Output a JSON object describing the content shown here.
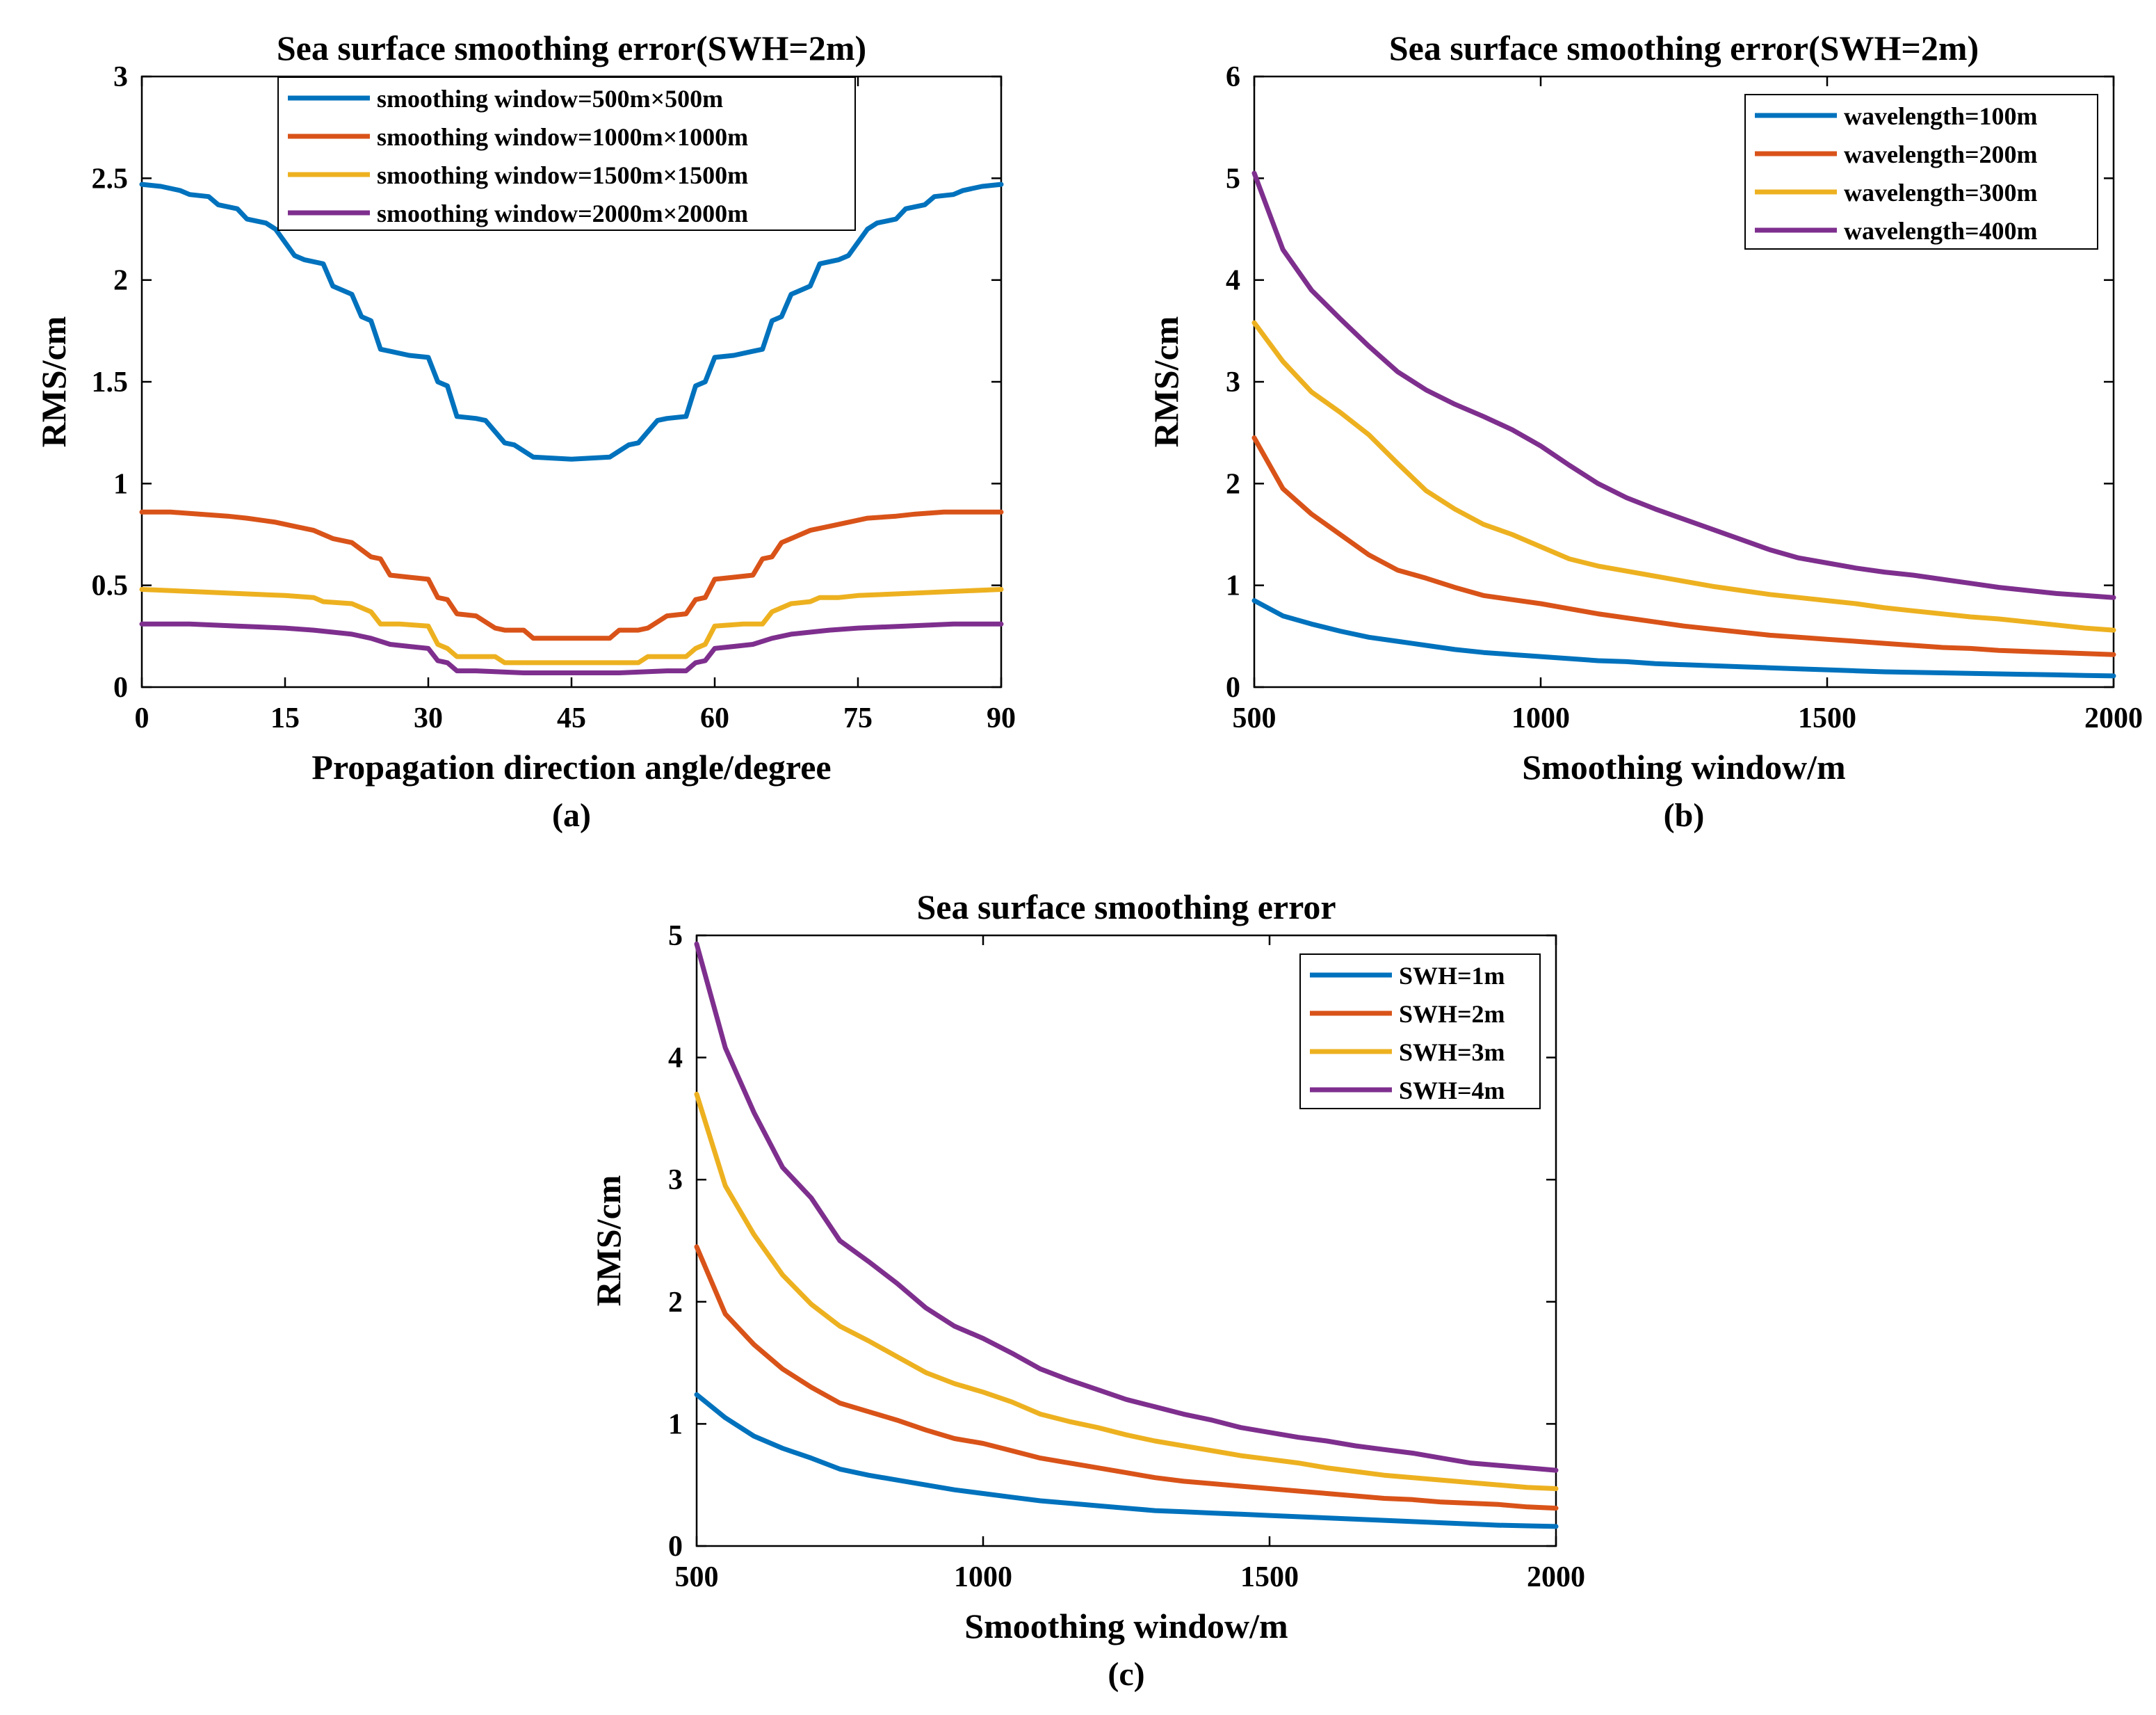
{
  "chart_data": [
    {
      "type": "line",
      "id": "a",
      "title": "Sea surface smoothing error(SWH=2m)",
      "xlabel": "Propagation direction angle/degree",
      "ylabel": "RMS/cm",
      "caption": "(a)",
      "xlim": [
        0,
        90
      ],
      "ylim": [
        0,
        3
      ],
      "xticks": [
        0,
        15,
        30,
        45,
        60,
        75,
        90
      ],
      "xtick_labels": [
        "0",
        "15",
        "30",
        "45",
        "60",
        "75",
        "90"
      ],
      "yticks": [
        0,
        0.5,
        1,
        1.5,
        2,
        2.5,
        3
      ],
      "ytick_labels": [
        "0",
        "0.5",
        "1",
        "1.5",
        "2",
        "2.5",
        "3"
      ],
      "legend_position": "top-center",
      "series": [
        {
          "name": "smoothing window=500m×500m",
          "color": "#0072BD",
          "x": [
            0,
            2,
            4,
            5,
            7,
            8,
            10,
            11,
            13,
            14,
            16,
            17,
            19,
            20,
            22,
            23,
            24,
            25,
            26,
            28,
            30,
            31,
            32,
            33,
            35,
            36,
            38,
            39,
            41,
            45,
            49,
            51,
            52,
            54,
            55,
            57,
            58,
            59,
            60,
            62,
            64,
            65,
            66,
            67,
            68,
            70,
            71,
            73,
            74,
            76,
            77,
            79,
            80,
            82,
            83,
            85,
            86,
            88,
            90
          ],
          "values": [
            2.47,
            2.46,
            2.44,
            2.42,
            2.41,
            2.37,
            2.35,
            2.3,
            2.28,
            2.25,
            2.12,
            2.1,
            2.08,
            1.97,
            1.93,
            1.82,
            1.8,
            1.66,
            1.65,
            1.63,
            1.62,
            1.5,
            1.48,
            1.33,
            1.32,
            1.31,
            1.2,
            1.19,
            1.13,
            1.12,
            1.13,
            1.19,
            1.2,
            1.31,
            1.32,
            1.33,
            1.48,
            1.5,
            1.62,
            1.63,
            1.65,
            1.66,
            1.8,
            1.82,
            1.93,
            1.97,
            2.08,
            2.1,
            2.12,
            2.25,
            2.28,
            2.3,
            2.35,
            2.37,
            2.41,
            2.42,
            2.44,
            2.46,
            2.47
          ]
        },
        {
          "name": "smoothing window=1000m×1000m",
          "color": "#D95319",
          "x": [
            0,
            3,
            6,
            9,
            11,
            14,
            16,
            18,
            20,
            22,
            24,
            25,
            26,
            28,
            30,
            31,
            32,
            33,
            35,
            37,
            38,
            40,
            41,
            45,
            49,
            50,
            52,
            53,
            55,
            57,
            58,
            59,
            60,
            62,
            64,
            65,
            66,
            67,
            68,
            70,
            72,
            74,
            76,
            79,
            81,
            84,
            87,
            90
          ],
          "values": [
            0.86,
            0.86,
            0.85,
            0.84,
            0.83,
            0.81,
            0.79,
            0.77,
            0.73,
            0.71,
            0.64,
            0.63,
            0.55,
            0.54,
            0.53,
            0.44,
            0.43,
            0.36,
            0.35,
            0.29,
            0.28,
            0.28,
            0.24,
            0.24,
            0.24,
            0.28,
            0.28,
            0.29,
            0.35,
            0.36,
            0.43,
            0.44,
            0.53,
            0.54,
            0.55,
            0.63,
            0.64,
            0.71,
            0.73,
            0.77,
            0.79,
            0.81,
            0.83,
            0.84,
            0.85,
            0.86,
            0.86,
            0.86
          ]
        },
        {
          "name": "smoothing window=1500m×1500m",
          "color": "#EDB120",
          "x": [
            0,
            5,
            10,
            15,
            18,
            19,
            22,
            23,
            24,
            25,
            27,
            30,
            31,
            32,
            33,
            35,
            37,
            38,
            52,
            53,
            55,
            57,
            58,
            59,
            60,
            63,
            65,
            66,
            67,
            68,
            70,
            71,
            73,
            75,
            80,
            85,
            90
          ],
          "values": [
            0.48,
            0.47,
            0.46,
            0.45,
            0.44,
            0.42,
            0.41,
            0.39,
            0.37,
            0.31,
            0.31,
            0.3,
            0.21,
            0.19,
            0.15,
            0.15,
            0.15,
            0.12,
            0.12,
            0.15,
            0.15,
            0.15,
            0.19,
            0.21,
            0.3,
            0.31,
            0.31,
            0.37,
            0.39,
            0.41,
            0.42,
            0.44,
            0.44,
            0.45,
            0.46,
            0.47,
            0.48
          ]
        },
        {
          "name": "smoothing window=2000m×2000m",
          "color": "#7E2F8E",
          "x": [
            0,
            5,
            10,
            15,
            18,
            20,
            22,
            24,
            26,
            28,
            30,
            31,
            32,
            33,
            34,
            35,
            40,
            45,
            50,
            55,
            56,
            57,
            58,
            59,
            60,
            62,
            64,
            66,
            68,
            70,
            72,
            75,
            80,
            85,
            90
          ],
          "values": [
            0.31,
            0.31,
            0.3,
            0.29,
            0.28,
            0.27,
            0.26,
            0.24,
            0.21,
            0.2,
            0.19,
            0.13,
            0.12,
            0.08,
            0.08,
            0.08,
            0.07,
            0.07,
            0.07,
            0.08,
            0.08,
            0.08,
            0.12,
            0.13,
            0.19,
            0.2,
            0.21,
            0.24,
            0.26,
            0.27,
            0.28,
            0.29,
            0.3,
            0.31,
            0.31
          ]
        }
      ]
    },
    {
      "type": "line",
      "id": "b",
      "title": "Sea surface smoothing error(SWH=2m)",
      "xlabel": "Smoothing window/m",
      "ylabel": "RMS/cm",
      "caption": "(b)",
      "xlim": [
        500,
        2000
      ],
      "ylim": [
        0,
        6
      ],
      "xticks": [
        500,
        1000,
        1500,
        2000
      ],
      "xtick_labels": [
        "500",
        "1000",
        "1500",
        "2000"
      ],
      "yticks": [
        0,
        1,
        2,
        3,
        4,
        5,
        6
      ],
      "ytick_labels": [
        "0",
        "1",
        "2",
        "3",
        "4",
        "5",
        "6"
      ],
      "legend_position": "top-right",
      "x": [
        500,
        550,
        600,
        650,
        700,
        750,
        800,
        850,
        900,
        950,
        1000,
        1050,
        1100,
        1150,
        1200,
        1250,
        1300,
        1350,
        1400,
        1450,
        1500,
        1550,
        1600,
        1650,
        1700,
        1750,
        1800,
        1850,
        1900,
        1950,
        2000
      ],
      "series": [
        {
          "name": "wavelength=100m",
          "color": "#0072BD",
          "values": [
            0.85,
            0.7,
            0.62,
            0.55,
            0.49,
            0.45,
            0.41,
            0.37,
            0.34,
            0.32,
            0.3,
            0.28,
            0.26,
            0.25,
            0.23,
            0.22,
            0.21,
            0.2,
            0.19,
            0.18,
            0.17,
            0.16,
            0.15,
            0.145,
            0.14,
            0.135,
            0.13,
            0.125,
            0.12,
            0.115,
            0.11
          ]
        },
        {
          "name": "wavelength=200m",
          "color": "#D95319",
          "values": [
            2.45,
            1.95,
            1.7,
            1.5,
            1.3,
            1.15,
            1.07,
            0.98,
            0.9,
            0.86,
            0.82,
            0.77,
            0.72,
            0.68,
            0.64,
            0.6,
            0.57,
            0.54,
            0.51,
            0.49,
            0.47,
            0.45,
            0.43,
            0.41,
            0.39,
            0.38,
            0.36,
            0.35,
            0.34,
            0.33,
            0.32
          ]
        },
        {
          "name": "wavelength=300m",
          "color": "#EDB120",
          "values": [
            3.58,
            3.2,
            2.9,
            2.7,
            2.48,
            2.2,
            1.93,
            1.75,
            1.6,
            1.5,
            1.38,
            1.26,
            1.19,
            1.14,
            1.09,
            1.04,
            0.99,
            0.95,
            0.91,
            0.88,
            0.85,
            0.82,
            0.78,
            0.75,
            0.72,
            0.69,
            0.67,
            0.64,
            0.61,
            0.58,
            0.56
          ]
        },
        {
          "name": "wavelength=400m",
          "color": "#7E2F8E",
          "values": [
            5.05,
            4.3,
            3.9,
            3.62,
            3.35,
            3.1,
            2.92,
            2.78,
            2.66,
            2.53,
            2.37,
            2.18,
            2.0,
            1.86,
            1.75,
            1.65,
            1.55,
            1.45,
            1.35,
            1.27,
            1.22,
            1.17,
            1.13,
            1.1,
            1.06,
            1.02,
            0.98,
            0.95,
            0.92,
            0.9,
            0.88
          ]
        }
      ]
    },
    {
      "type": "line",
      "id": "c",
      "title": "Sea surface smoothing error",
      "xlabel": "Smoothing window/m",
      "ylabel": "RMS/cm",
      "caption": "(c)",
      "xlim": [
        500,
        2000
      ],
      "ylim": [
        0,
        5
      ],
      "xticks": [
        500,
        1000,
        1500,
        2000
      ],
      "xtick_labels": [
        "500",
        "1000",
        "1500",
        "2000"
      ],
      "yticks": [
        0,
        1,
        2,
        3,
        4,
        5
      ],
      "ytick_labels": [
        "0",
        "1",
        "2",
        "3",
        "4",
        "5"
      ],
      "legend_position": "top-right",
      "x": [
        500,
        550,
        600,
        650,
        700,
        750,
        800,
        850,
        900,
        950,
        1000,
        1050,
        1100,
        1150,
        1200,
        1250,
        1300,
        1350,
        1400,
        1450,
        1500,
        1550,
        1600,
        1650,
        1700,
        1750,
        1800,
        1850,
        1900,
        1950,
        2000
      ],
      "series": [
        {
          "name": "SWH=1m",
          "color": "#0072BD",
          "values": [
            1.24,
            1.05,
            0.9,
            0.8,
            0.72,
            0.63,
            0.58,
            0.54,
            0.5,
            0.46,
            0.43,
            0.4,
            0.37,
            0.35,
            0.33,
            0.31,
            0.29,
            0.28,
            0.27,
            0.26,
            0.25,
            0.24,
            0.23,
            0.22,
            0.21,
            0.2,
            0.19,
            0.18,
            0.17,
            0.165,
            0.16
          ]
        },
        {
          "name": "SWH=2m",
          "color": "#D95319",
          "values": [
            2.45,
            1.9,
            1.65,
            1.45,
            1.3,
            1.17,
            1.1,
            1.03,
            0.95,
            0.88,
            0.84,
            0.78,
            0.72,
            0.68,
            0.64,
            0.6,
            0.56,
            0.53,
            0.51,
            0.49,
            0.47,
            0.45,
            0.43,
            0.41,
            0.39,
            0.38,
            0.36,
            0.35,
            0.34,
            0.32,
            0.31
          ]
        },
        {
          "name": "SWH=3m",
          "color": "#EDB120",
          "values": [
            3.7,
            2.95,
            2.55,
            2.22,
            1.98,
            1.8,
            1.68,
            1.55,
            1.42,
            1.33,
            1.26,
            1.18,
            1.08,
            1.02,
            0.97,
            0.91,
            0.86,
            0.82,
            0.78,
            0.74,
            0.71,
            0.68,
            0.64,
            0.61,
            0.58,
            0.56,
            0.54,
            0.52,
            0.5,
            0.48,
            0.47
          ]
        },
        {
          "name": "SWH=4m",
          "color": "#7E2F8E",
          "values": [
            4.93,
            4.08,
            3.55,
            3.1,
            2.85,
            2.5,
            2.33,
            2.15,
            1.95,
            1.8,
            1.7,
            1.58,
            1.45,
            1.36,
            1.28,
            1.2,
            1.14,
            1.08,
            1.03,
            0.97,
            0.93,
            0.89,
            0.86,
            0.82,
            0.79,
            0.76,
            0.72,
            0.68,
            0.66,
            0.64,
            0.62
          ]
        }
      ]
    }
  ]
}
